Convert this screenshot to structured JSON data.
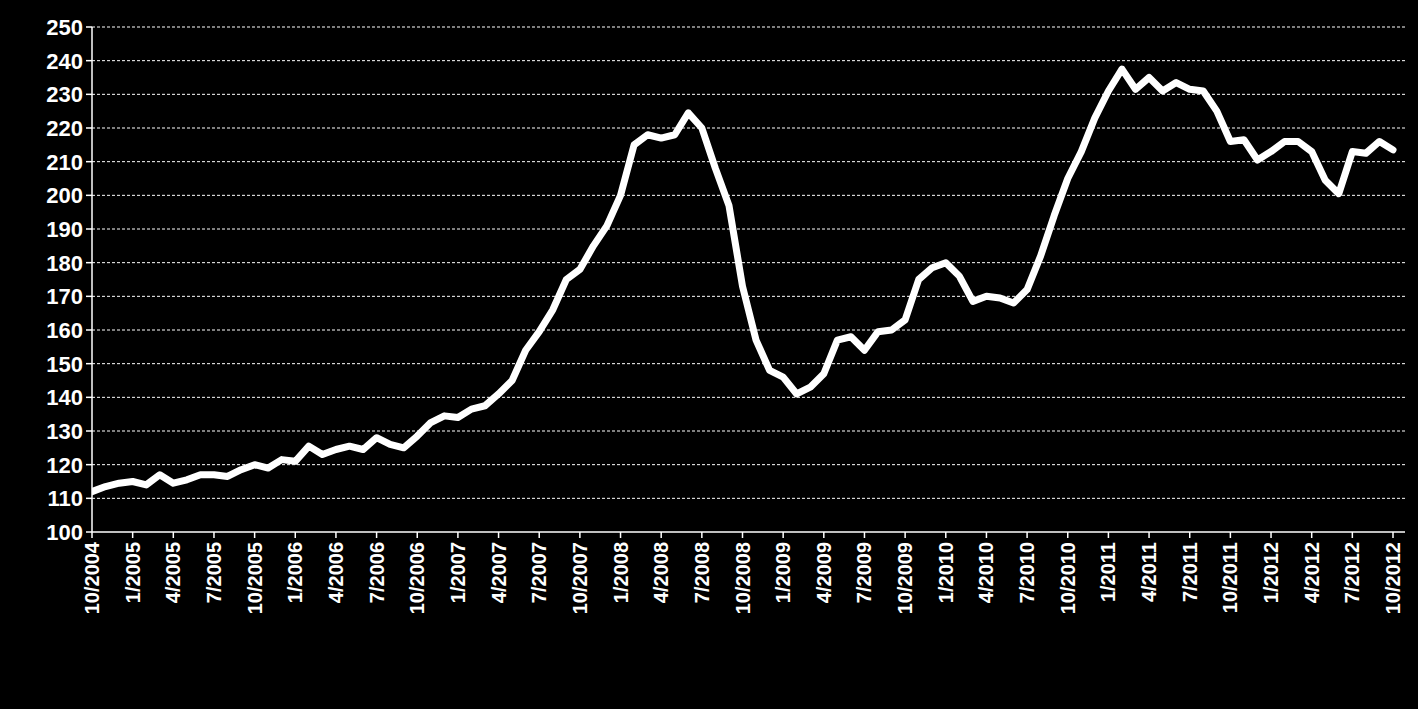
{
  "chart_data": {
    "type": "line",
    "categories": [
      "10/2004",
      null,
      null,
      "1/2005",
      null,
      null,
      "4/2005",
      null,
      null,
      "7/2005",
      null,
      null,
      "10/2005",
      null,
      null,
      "1/2006",
      null,
      null,
      "4/2006",
      null,
      null,
      "7/2006",
      null,
      null,
      "10/2006",
      null,
      null,
      "1/2007",
      null,
      null,
      "4/2007",
      null,
      null,
      "7/2007",
      null,
      null,
      "10/2007",
      null,
      null,
      "1/2008",
      null,
      null,
      "4/2008",
      null,
      null,
      "7/2008",
      null,
      null,
      "10/2008",
      null,
      null,
      "1/2009",
      null,
      null,
      "4/2009",
      null,
      null,
      "7/2009",
      null,
      null,
      "10/2009",
      null,
      null,
      "1/2010",
      null,
      null,
      "4/2010",
      null,
      null,
      "7/2010",
      null,
      null,
      "10/2010",
      null,
      null,
      "1/2011",
      null,
      null,
      "4/2011",
      null,
      null,
      "7/2011",
      null,
      null,
      "10/2011",
      null,
      null,
      "1/2012",
      null,
      null,
      "4/2012",
      null,
      null,
      "7/2012",
      null,
      null,
      "10/2012"
    ],
    "values": [
      112,
      113.5,
      114.5,
      115,
      114,
      117,
      114.5,
      115.5,
      117,
      117,
      116.5,
      118.5,
      120,
      119,
      121.5,
      121,
      125.5,
      123,
      124.5,
      125.5,
      124.5,
      128,
      126,
      125,
      128.5,
      132.5,
      134.5,
      134,
      136.5,
      137.5,
      141,
      145,
      154,
      159.5,
      166,
      175,
      178,
      185,
      191,
      200,
      215,
      218,
      217,
      218,
      224.5,
      220,
      208,
      197,
      173,
      157,
      148,
      146,
      141,
      143,
      147,
      157,
      158,
      154,
      159.5,
      160,
      163,
      175,
      178.5,
      180,
      176,
      168.5,
      170,
      169.5,
      168,
      172,
      182,
      194,
      205,
      213,
      223,
      231,
      237.5,
      231.5,
      235,
      231,
      233.5,
      231.5,
      231,
      225,
      216,
      216.5,
      210.5,
      213,
      216,
      216,
      213,
      204.5,
      200.5,
      213,
      212.5,
      216,
      213.5
    ],
    "color": "#ffffff",
    "ylim": [
      100,
      250
    ],
    "yticks": [
      100,
      110,
      120,
      130,
      140,
      150,
      160,
      170,
      180,
      190,
      200,
      210,
      220,
      230,
      240,
      250
    ],
    "grid": true
  }
}
